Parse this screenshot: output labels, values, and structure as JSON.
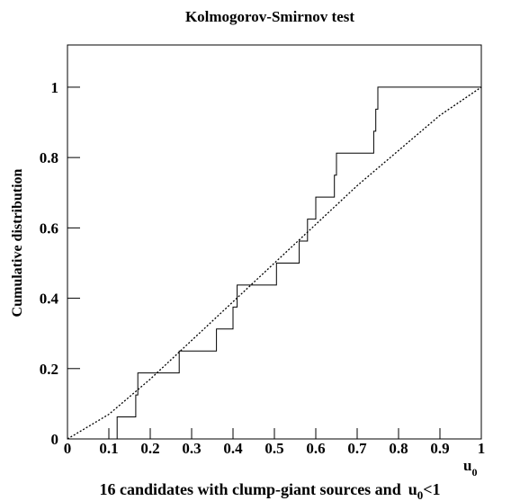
{
  "chart_data": {
    "type": "line",
    "title": "Kolmogorov-Smirnov test",
    "ylabel": "Cumulative distribution",
    "xlabel": [
      "u",
      "0"
    ],
    "caption": [
      "16 candidates with clump-giant sources and",
      "u",
      "0",
      "<1"
    ],
    "xlim": [
      0,
      1
    ],
    "ylim": [
      0,
      1.12
    ],
    "xticks": [
      0,
      0.1,
      0.2,
      0.3,
      0.4,
      0.5,
      0.6,
      0.7,
      0.8,
      0.9,
      1
    ],
    "yticks": [
      0,
      0.2,
      0.4,
      0.6,
      0.8,
      1
    ],
    "series": [
      {
        "style": "step",
        "color": "#000000",
        "x": [
          0,
          0.12,
          0.165,
          0.17,
          0.27,
          0.36,
          0.4,
          0.41,
          0.505,
          0.56,
          0.58,
          0.6,
          0.645,
          0.65,
          0.74,
          0.745,
          0.75,
          1
        ],
        "values": [
          0,
          0.0625,
          0.125,
          0.1875,
          0.25,
          0.3125,
          0.375,
          0.4375,
          0.5,
          0.5625,
          0.625,
          0.6875,
          0.75,
          0.8125,
          0.875,
          0.9375,
          1,
          1
        ]
      },
      {
        "style": "dotted",
        "color": "#000000",
        "x": [
          0,
          0.1,
          0.2,
          0.3,
          0.4,
          0.5,
          0.6,
          0.7,
          0.8,
          0.9,
          1
        ],
        "values": [
          0,
          0.07,
          0.17,
          0.28,
          0.39,
          0.5,
          0.61,
          0.72,
          0.82,
          0.92,
          1
        ]
      }
    ]
  }
}
